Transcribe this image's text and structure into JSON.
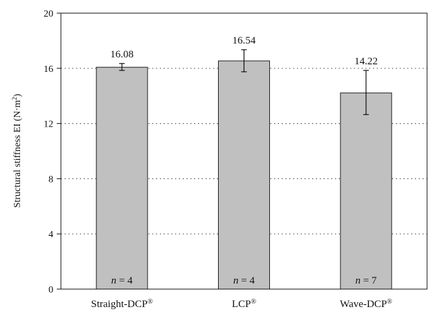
{
  "chart_data": {
    "type": "bar",
    "ylabel": "Structural stiffness EI (N·m²)",
    "ylabel_text": "Structural stiffness EI (N·m",
    "ylabel_sup": "2",
    "ylabel_close": ")",
    "ylim": [
      0,
      20
    ],
    "yticks": [
      "0",
      "4",
      "8",
      "12",
      "16",
      "20"
    ],
    "grid": "dotted horizontal",
    "categories": [
      "Straight-DCP®",
      "LCP®",
      "Wave-DCP®"
    ],
    "category_labels": [
      {
        "text": "Straight-DCP",
        "sup": "®"
      },
      {
        "text": "LCP",
        "sup": "®"
      },
      {
        "text": "Wave-DCP",
        "sup": "®"
      }
    ],
    "values": [
      16.08,
      16.54,
      14.22
    ],
    "value_labels": [
      "16.08",
      "16.54",
      "14.22"
    ],
    "error_low": [
      15.85,
      15.75,
      12.65
    ],
    "error_high": [
      16.35,
      17.35,
      15.85
    ],
    "n_var": "n",
    "n_values": [
      "= 4",
      "= 4",
      "= 7"
    ],
    "bar_color": "#c0c0c0",
    "bar_stroke": "#222222"
  }
}
